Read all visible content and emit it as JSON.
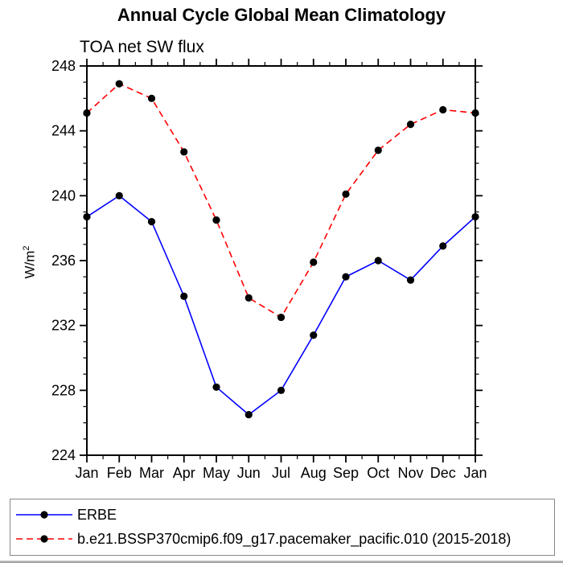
{
  "chart_data": {
    "type": "line",
    "title": "Annual Cycle Global Mean Climatology",
    "subtitle": "TOA net SW flux",
    "ylabel": {
      "text": "W/m2",
      "prefix": "W/m",
      "sup": "2"
    },
    "categories": [
      "Jan",
      "Feb",
      "Mar",
      "Apr",
      "May",
      "Jun",
      "Jul",
      "Aug",
      "Sep",
      "Oct",
      "Nov",
      "Dec",
      "Jan"
    ],
    "yticks": [
      224,
      228,
      232,
      236,
      240,
      244,
      248
    ],
    "y_minor_step": 1,
    "x_minor_ticks": "month-midpoints",
    "ylim": [
      224,
      248
    ],
    "grid": false,
    "frame_color": "#000000",
    "background": "#ffffff",
    "legend_position": "bottom-box",
    "series": [
      {
        "name": "ERBE",
        "color": "#0000ff",
        "line_style": "solid",
        "marker": "filled-circle",
        "marker_color": "#000000",
        "values": [
          238.7,
          240.0,
          238.4,
          233.8,
          228.2,
          226.5,
          228.0,
          231.4,
          235.0,
          236.0,
          234.8,
          236.9,
          238.7
        ]
      },
      {
        "name": "b.e21.BSSP370cmip6.f09_g17.pacemaker_pacific.010 (2015-2018)",
        "color": "#ff0000",
        "line_style": "dashed",
        "marker": "filled-circle",
        "marker_color": "#000000",
        "values": [
          245.1,
          246.9,
          246.0,
          242.7,
          238.5,
          233.7,
          232.5,
          235.9,
          240.1,
          242.8,
          244.4,
          245.3,
          245.1
        ]
      }
    ]
  }
}
